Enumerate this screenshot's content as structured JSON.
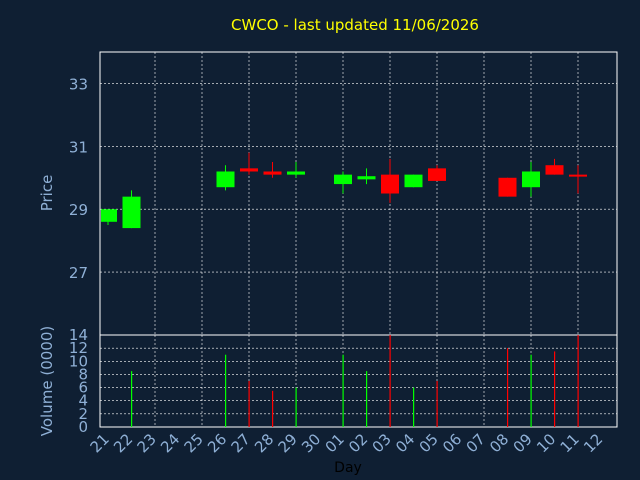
{
  "title": "CWCO - last updated 11/06/2026",
  "colors": {
    "background": "#0f1f33",
    "title": "#ffff00",
    "axis_text": "#8fb0d6",
    "frame": "#ffffff",
    "grid": "#ffffff",
    "up": "#00ff00",
    "down": "#ff0000"
  },
  "chart_data": [
    {
      "type": "candlestick",
      "title": "CWCO - last updated 11/06/2026",
      "ylabel": "Price",
      "ylim": [
        25.0,
        34.0
      ],
      "yticks": [
        27,
        29,
        31,
        33
      ],
      "grid": true,
      "categories": [
        "21",
        "22",
        "23",
        "24",
        "25",
        "26",
        "27",
        "28",
        "29",
        "30",
        "01",
        "02",
        "03",
        "04",
        "05",
        "06",
        "07",
        "08",
        "09",
        "10",
        "11",
        "12"
      ],
      "ohlc": [
        {
          "x": "21",
          "open": 28.6,
          "high": 29.0,
          "low": 28.5,
          "close": 29.0
        },
        {
          "x": "22",
          "open": 28.4,
          "high": 29.6,
          "low": 28.4,
          "close": 29.4
        },
        {
          "x": "26",
          "open": 29.7,
          "high": 30.4,
          "low": 29.6,
          "close": 30.2
        },
        {
          "x": "27",
          "open": 30.3,
          "high": 30.8,
          "low": 30.1,
          "close": 30.2
        },
        {
          "x": "28",
          "open": 30.2,
          "high": 30.5,
          "low": 30.0,
          "close": 30.1
        },
        {
          "x": "29",
          "open": 30.1,
          "high": 30.5,
          "low": 30.0,
          "close": 30.2
        },
        {
          "x": "01",
          "open": 29.8,
          "high": 30.2,
          "low": 29.5,
          "close": 30.1
        },
        {
          "x": "02",
          "open": 29.95,
          "high": 30.3,
          "low": 29.8,
          "close": 30.05
        },
        {
          "x": "03",
          "open": 30.1,
          "high": 30.6,
          "low": 29.2,
          "close": 29.5
        },
        {
          "x": "04",
          "open": 29.7,
          "high": 30.1,
          "low": 29.7,
          "close": 30.1
        },
        {
          "x": "05",
          "open": 30.3,
          "high": 30.4,
          "low": 29.9,
          "close": 29.9
        },
        {
          "x": "08",
          "open": 30.0,
          "high": 30.0,
          "low": 29.4,
          "close": 29.4
        },
        {
          "x": "09",
          "open": 29.7,
          "high": 30.5,
          "low": 29.4,
          "close": 30.2
        },
        {
          "x": "10",
          "open": 30.4,
          "high": 30.6,
          "low": 30.1,
          "close": 30.1
        },
        {
          "x": "11",
          "open": 30.1,
          "high": 30.4,
          "low": 29.5,
          "close": 30.05
        }
      ]
    },
    {
      "type": "bar",
      "ylabel": "Volume (0000)",
      "xlabel": "Day",
      "ylim": [
        0,
        14
      ],
      "yticks": [
        0,
        2,
        4,
        6,
        8,
        10,
        12,
        14
      ],
      "grid": true,
      "categories": [
        "21",
        "22",
        "23",
        "24",
        "25",
        "26",
        "27",
        "28",
        "29",
        "30",
        "01",
        "02",
        "03",
        "04",
        "05",
        "06",
        "07",
        "08",
        "09",
        "10",
        "11",
        "12"
      ],
      "bars": [
        {
          "x": "22",
          "value": 8.5,
          "direction": "up"
        },
        {
          "x": "26",
          "value": 11.0,
          "direction": "up"
        },
        {
          "x": "27",
          "value": 7.0,
          "direction": "down"
        },
        {
          "x": "28",
          "value": 5.5,
          "direction": "down"
        },
        {
          "x": "29",
          "value": 6.0,
          "direction": "up"
        },
        {
          "x": "01",
          "value": 11.0,
          "direction": "up"
        },
        {
          "x": "02",
          "value": 8.5,
          "direction": "up"
        },
        {
          "x": "03",
          "value": 14.0,
          "direction": "down"
        },
        {
          "x": "04",
          "value": 6.0,
          "direction": "up"
        },
        {
          "x": "05",
          "value": 7.0,
          "direction": "down"
        },
        {
          "x": "08",
          "value": 12.0,
          "direction": "down"
        },
        {
          "x": "09",
          "value": 11.0,
          "direction": "up"
        },
        {
          "x": "10",
          "value": 11.5,
          "direction": "down"
        },
        {
          "x": "11",
          "value": 14.0,
          "direction": "down"
        }
      ]
    }
  ]
}
